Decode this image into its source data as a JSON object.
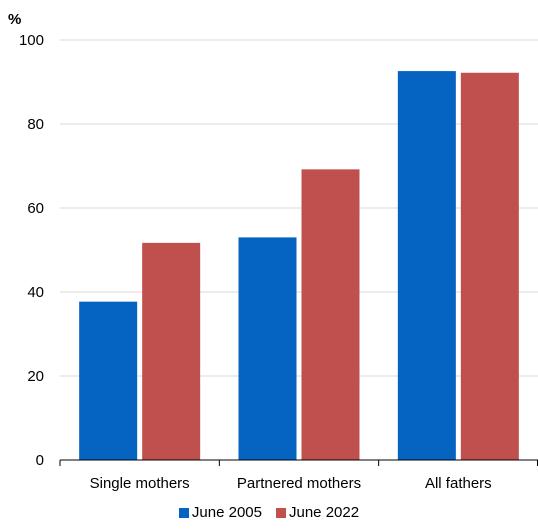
{
  "chart_data": {
    "type": "bar",
    "unit_label": "%",
    "categories": [
      "Single mothers",
      "Partnered mothers",
      "All fathers"
    ],
    "series": [
      {
        "name": "June 2005",
        "color": "#0563c1",
        "values": [
          37.7,
          53.0,
          92.6
        ]
      },
      {
        "name": "June 2022",
        "color": "#c0504d",
        "values": [
          51.7,
          69.2,
          92.2
        ]
      }
    ],
    "yticks": [
      0,
      20,
      40,
      60,
      80,
      100
    ],
    "ylim": [
      0,
      100
    ],
    "grid": true,
    "legend_position": "bottom"
  }
}
